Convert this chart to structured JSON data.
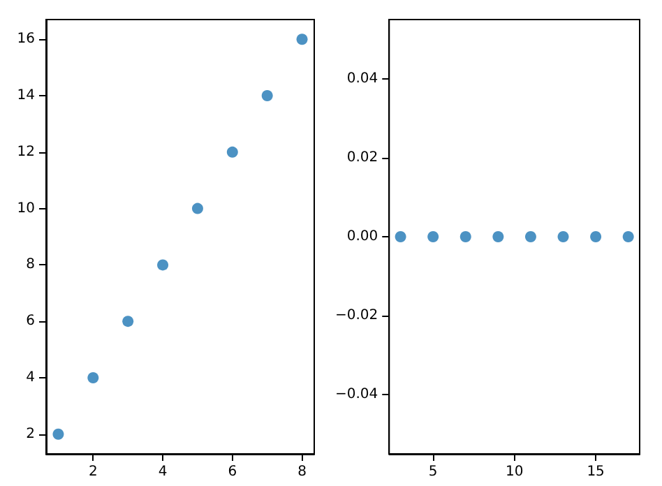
{
  "chart_data": [
    {
      "type": "scatter",
      "x": [
        1,
        2,
        3,
        4,
        5,
        6,
        7,
        8
      ],
      "series": [
        {
          "color": "#1f77b4",
          "values": [
            2,
            4,
            6,
            8,
            10,
            12,
            14,
            16
          ]
        }
      ],
      "xlim": [
        0.65,
        8.35
      ],
      "ylim": [
        1.3,
        16.7
      ],
      "xticks": [
        2,
        4,
        6,
        8
      ],
      "yticks": [
        2,
        4,
        6,
        8,
        10,
        12,
        14,
        16
      ],
      "marker": "circle",
      "grid": false
    },
    {
      "type": "scatter",
      "x": [
        3,
        5,
        7,
        9,
        11,
        13,
        15,
        17
      ],
      "series": [
        {
          "color": "#1f77b4",
          "values": [
            0,
            0,
            0,
            0,
            0,
            0,
            0,
            0
          ]
        }
      ],
      "xlim": [
        2.3,
        17.7
      ],
      "ylim": [
        -0.055,
        0.055
      ],
      "xticks": [
        5,
        10,
        15
      ],
      "yticks": [
        {
          "value": -0.04,
          "label": "−0.04"
        },
        {
          "value": -0.02,
          "label": "−0.02"
        },
        {
          "value": 0,
          "label": "0.00"
        },
        {
          "value": 0.02,
          "label": "0.02"
        },
        {
          "value": 0.04,
          "label": "0.04"
        }
      ],
      "marker": "circle",
      "grid": false
    }
  ]
}
